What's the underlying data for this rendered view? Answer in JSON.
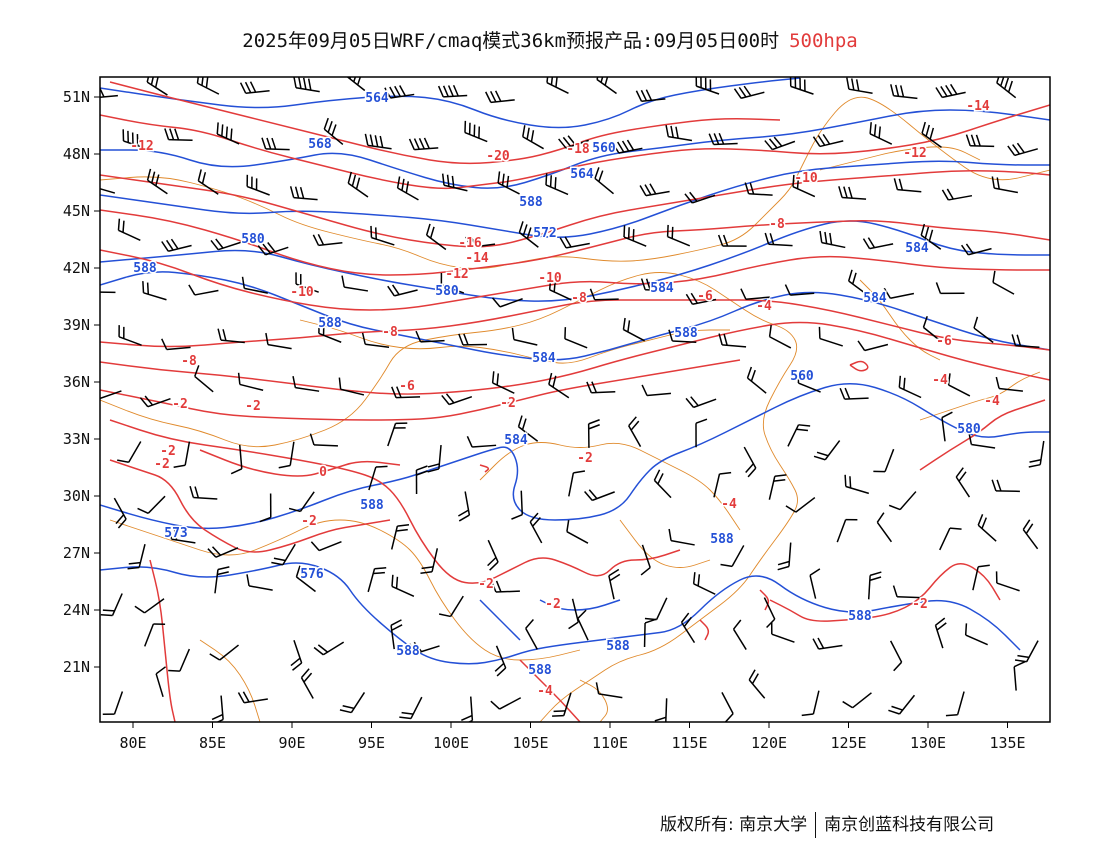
{
  "title": {
    "text": "2025年09月05日WRF/cmaq模式36km预报产品:09月05日00时",
    "level": "500hpa"
  },
  "colors": {
    "temperature_contours": "#e23b3b",
    "height_contours": "#2450d6",
    "coastline_borders": "#e08a2c",
    "wind_barbs": "#000000",
    "title_level": "#e23b3b"
  },
  "axes": {
    "lon_ticks": [
      "80E",
      "85E",
      "90E",
      "95E",
      "100E",
      "105E",
      "110E",
      "115E",
      "120E",
      "125E",
      "130E",
      "135E"
    ],
    "lat_ticks": [
      "51N",
      "48N",
      "45N",
      "42N",
      "39N",
      "36N",
      "33N",
      "30N",
      "27N",
      "24N",
      "21N"
    ]
  },
  "height_labels": [
    "564",
    "568",
    "560",
    "564",
    "588",
    "572",
    "580",
    "584",
    "588",
    "580",
    "584",
    "584",
    "588",
    "584",
    "588",
    "560",
    "580",
    "584",
    "588",
    "573",
    "576",
    "588",
    "588",
    "588",
    "588",
    "588"
  ],
  "temperature_labels": [
    "-12",
    "-20",
    "-18",
    "-16",
    "-14",
    "-12",
    "-10",
    "-10",
    "-8",
    "-8",
    "-8",
    "-6",
    "-6",
    "-4",
    "-4",
    "-2",
    "-2",
    "-2",
    "-2",
    "-2",
    "-2",
    "0",
    "-4",
    "-6",
    "-8",
    "-10",
    "-12",
    "-14",
    "-4",
    "-2",
    "-4",
    "-2",
    "-2",
    "-2"
  ],
  "footer": {
    "left": "版权所有: 南京大学",
    "right": "南京创蓝科技有限公司"
  }
}
